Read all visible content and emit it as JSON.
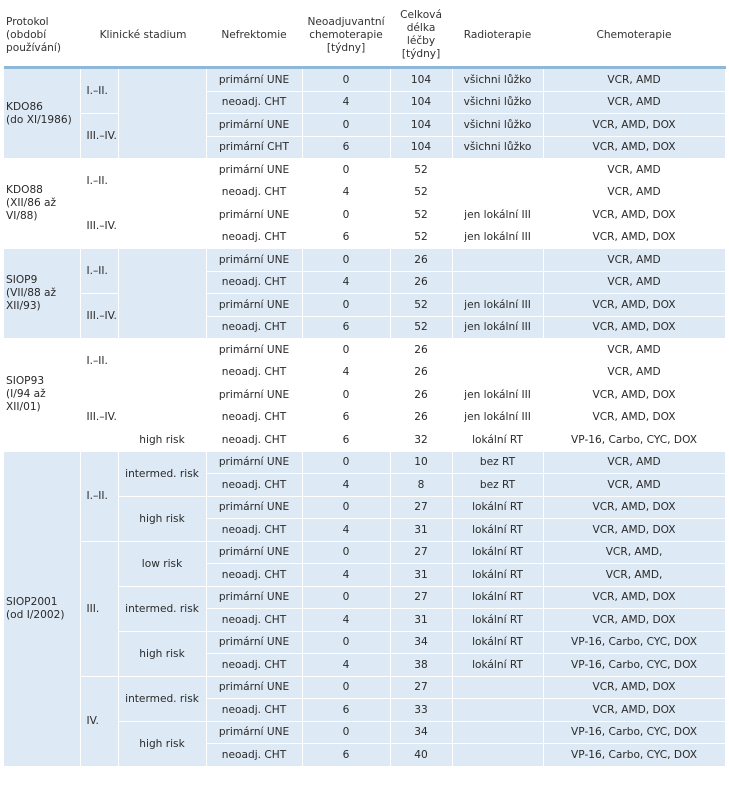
{
  "headers": [
    "Protokol\n(období\npoužívání)",
    "Klinické stadium",
    "Nefrektomie",
    "Neoadjuvantní\nchemoterapie\n[týdny]",
    "Celková\ndélka\nléčby\n[týdny]",
    "Radioterapie",
    "Chemoterapie"
  ],
  "groups": [
    {
      "protocol": "KDO86\n(do XI/1986)",
      "rows": [
        {
          "stage": "I.–II.",
          "risk": "",
          "nef": "primární UNE",
          "neo": "0",
          "total": "104",
          "rt": "všichni lůžko",
          "chemo": "VCR, AMD"
        },
        {
          "stage": "",
          "risk": "",
          "nef": "neoadj. CHT",
          "neo": "4",
          "total": "104",
          "rt": "všichni lůžko",
          "chemo": "VCR, AMD"
        },
        {
          "stage": "III.–IV.",
          "risk": "",
          "nef": "primární UNE",
          "neo": "0",
          "total": "104",
          "rt": "všichni lůžko",
          "chemo": "VCR, AMD, DOX"
        },
        {
          "stage": "",
          "risk": "",
          "nef": "primární CHT",
          "neo": "6",
          "total": "104",
          "rt": "všichni lůžko",
          "chemo": "VCR, AMD, DOX"
        }
      ]
    },
    {
      "protocol": "KDO88\n(XII/86 až\nVI/88)",
      "rows": [
        {
          "stage": "I.–II.",
          "risk": "",
          "nef": "primární UNE",
          "neo": "0",
          "total": "52",
          "rt": "",
          "chemo": "VCR, AMD"
        },
        {
          "stage": "",
          "risk": "",
          "nef": "neoadj. CHT",
          "neo": "4",
          "total": "52",
          "rt": "",
          "chemo": "VCR, AMD"
        },
        {
          "stage": "III.–IV.",
          "risk": "",
          "nef": "primární UNE",
          "neo": "0",
          "total": "52",
          "rt": "jen lokální III",
          "chemo": "VCR, AMD, DOX"
        },
        {
          "stage": "",
          "risk": "",
          "nef": "neoadj. CHT",
          "neo": "6",
          "total": "52",
          "rt": "jen lokální III",
          "chemo": "VCR, AMD, DOX"
        }
      ]
    },
    {
      "protocol": "SIOP9\n(VII/88 až\nXII/93)",
      "rows": [
        {
          "stage": "I.–II.",
          "risk": "",
          "nef": "primární UNE",
          "neo": "0",
          "total": "26",
          "rt": "",
          "chemo": "VCR, AMD"
        },
        {
          "stage": "",
          "risk": "",
          "nef": "neoadj. CHT",
          "neo": "4",
          "total": "26",
          "rt": "",
          "chemo": "VCR, AMD"
        },
        {
          "stage": "III.–IV.",
          "risk": "",
          "nef": "primární UNE",
          "neo": "0",
          "total": "52",
          "rt": "jen lokální III",
          "chemo": "VCR, AMD, DOX"
        },
        {
          "stage": "",
          "risk": "",
          "nef": "neoadj. CHT",
          "neo": "6",
          "total": "52",
          "rt": "jen lokální III",
          "chemo": "VCR, AMD, DOX"
        }
      ]
    },
    {
      "protocol": "SIOP93\n(I/94 až\nXII/01)",
      "rows": [
        {
          "stage": "I.–II.",
          "risk": "",
          "nef": "primární UNE",
          "neo": "0",
          "total": "26",
          "rt": "",
          "chemo": "VCR, AMD"
        },
        {
          "stage": "",
          "risk": "",
          "nef": "neoadj. CHT",
          "neo": "4",
          "total": "26",
          "rt": "",
          "chemo": "VCR, AMD"
        },
        {
          "stage": "III.–IV.",
          "risk": "",
          "nef": "primární UNE",
          "neo": "0",
          "total": "26",
          "rt": "jen lokální III",
          "chemo": "VCR, AMD, DOX"
        },
        {
          "stage": "",
          "risk": "",
          "nef": "neoadj. CHT",
          "neo": "6",
          "total": "26",
          "rt": "jen lokální III",
          "chemo": "VCR, AMD, DOX"
        },
        {
          "stage": "",
          "risk": "high risk",
          "nef": "neoadj. CHT",
          "neo": "6",
          "total": "32",
          "rt": "lokální RT",
          "chemo": "VP-16, Carbo, CYC, DOX"
        }
      ]
    },
    {
      "protocol": "SIOP2001\n(od I/2002)",
      "rows": [
        {
          "stage": "I.–II.",
          "risk": "intermed. risk",
          "nef": "primární UNE",
          "neo": "0",
          "total": "10",
          "rt": "bez RT",
          "chemo": "VCR, AMD"
        },
        {
          "stage": "",
          "risk": "",
          "nef": "neoadj. CHT",
          "neo": "4",
          "total": "8",
          "rt": "bez RT",
          "chemo": "VCR, AMD"
        },
        {
          "stage": "",
          "risk": "high risk",
          "nef": "primární UNE",
          "neo": "0",
          "total": "27",
          "rt": "lokální RT",
          "chemo": "VCR, AMD, DOX"
        },
        {
          "stage": "",
          "risk": "",
          "nef": "neoadj. CHT",
          "neo": "4",
          "total": "31",
          "rt": "lokální RT",
          "chemo": "VCR, AMD, DOX"
        },
        {
          "stage": "III.",
          "risk": "low risk",
          "nef": "primární UNE",
          "neo": "0",
          "total": "27",
          "rt": "lokální RT",
          "chemo": "VCR, AMD,"
        },
        {
          "stage": "",
          "risk": "",
          "nef": "neoadj. CHT",
          "neo": "4",
          "total": "31",
          "rt": "lokální RT",
          "chemo": "VCR, AMD,"
        },
        {
          "stage": "",
          "risk": "intermed. risk",
          "nef": "primární UNE",
          "neo": "0",
          "total": "27",
          "rt": "lokální RT",
          "chemo": "VCR, AMD, DOX"
        },
        {
          "stage": "",
          "risk": "",
          "nef": "neoadj. CHT",
          "neo": "4",
          "total": "31",
          "rt": "lokální RT",
          "chemo": "VCR, AMD, DOX"
        },
        {
          "stage": "",
          "risk": "high risk",
          "nef": "primární UNE",
          "neo": "0",
          "total": "34",
          "rt": "lokální RT",
          "chemo": "VP-16, Carbo, CYC, DOX"
        },
        {
          "stage": "",
          "risk": "",
          "nef": "neoadj. CHT",
          "neo": "4",
          "total": "38",
          "rt": "lokální RT",
          "chemo": "VP-16, Carbo, CYC, DOX"
        },
        {
          "stage": "IV.",
          "risk": "intermed. risk",
          "nef": "primární UNE",
          "neo": "0",
          "total": "27",
          "rt": "",
          "chemo": "VCR, AMD, DOX"
        },
        {
          "stage": "",
          "risk": "",
          "nef": "neoadj. CHT",
          "neo": "6",
          "total": "33",
          "rt": "",
          "chemo": "VCR, AMD, DOX"
        },
        {
          "stage": "",
          "risk": "high risk",
          "nef": "primární UNE",
          "neo": "0",
          "total": "34",
          "rt": "",
          "chemo": "VP-16, Carbo, CYC, DOX"
        },
        {
          "stage": "",
          "risk": "",
          "nef": "neoadj. CHT",
          "neo": "6",
          "total": "40",
          "rt": "",
          "chemo": "VP-16, Carbo, CYC, DOX"
        }
      ]
    }
  ]
}
